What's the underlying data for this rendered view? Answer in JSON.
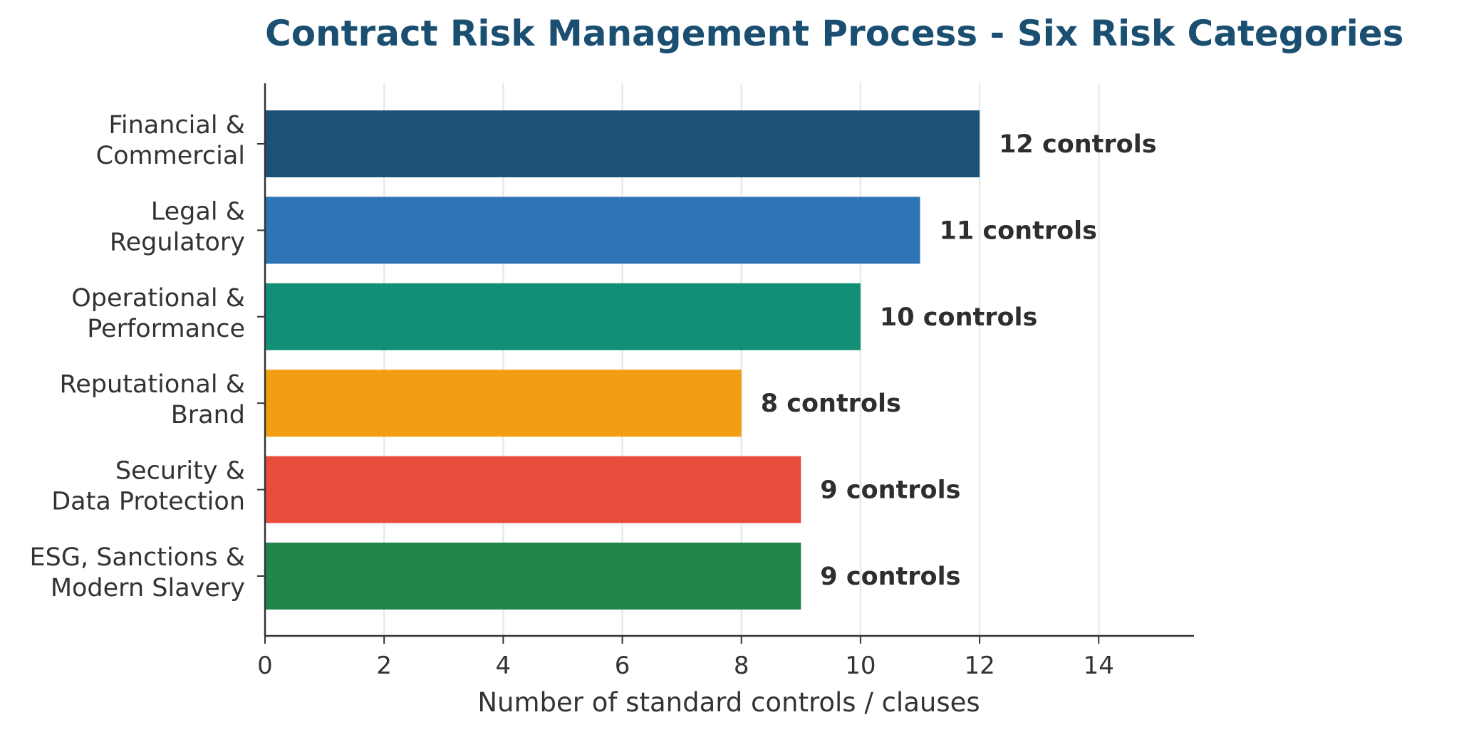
{
  "chart_data": {
    "type": "bar",
    "orientation": "horizontal",
    "title": "Contract Risk Management Process - Six Risk Categories",
    "xlabel": "Number of standard controls / clauses",
    "ylabel": "",
    "xlim": [
      0,
      15.6
    ],
    "xticks": [
      0,
      2,
      4,
      6,
      8,
      10,
      12,
      14
    ],
    "grid": "vertical",
    "categories": [
      [
        "Financial &",
        "Commercial"
      ],
      [
        "Legal &",
        "Regulatory"
      ],
      [
        "Operational &",
        "Performance"
      ],
      [
        "Reputational &",
        "Brand"
      ],
      [
        "Security &",
        "Data Protection"
      ],
      [
        "ESG, Sanctions &",
        "Modern Slavery"
      ]
    ],
    "values": [
      12,
      11,
      10,
      8,
      9,
      9
    ],
    "data_labels": [
      "12 controls",
      "11 controls",
      "10 controls",
      "8 controls",
      "9 controls",
      "9 controls"
    ],
    "colors": [
      "#1c5276",
      "#2e75b5",
      "#138f78",
      "#f29d12",
      "#e74c3c",
      "#218649"
    ]
  },
  "style": {
    "axis_color": "#333333",
    "grid_color": "#e3ebeb",
    "title_color": "#1b4f72"
  }
}
